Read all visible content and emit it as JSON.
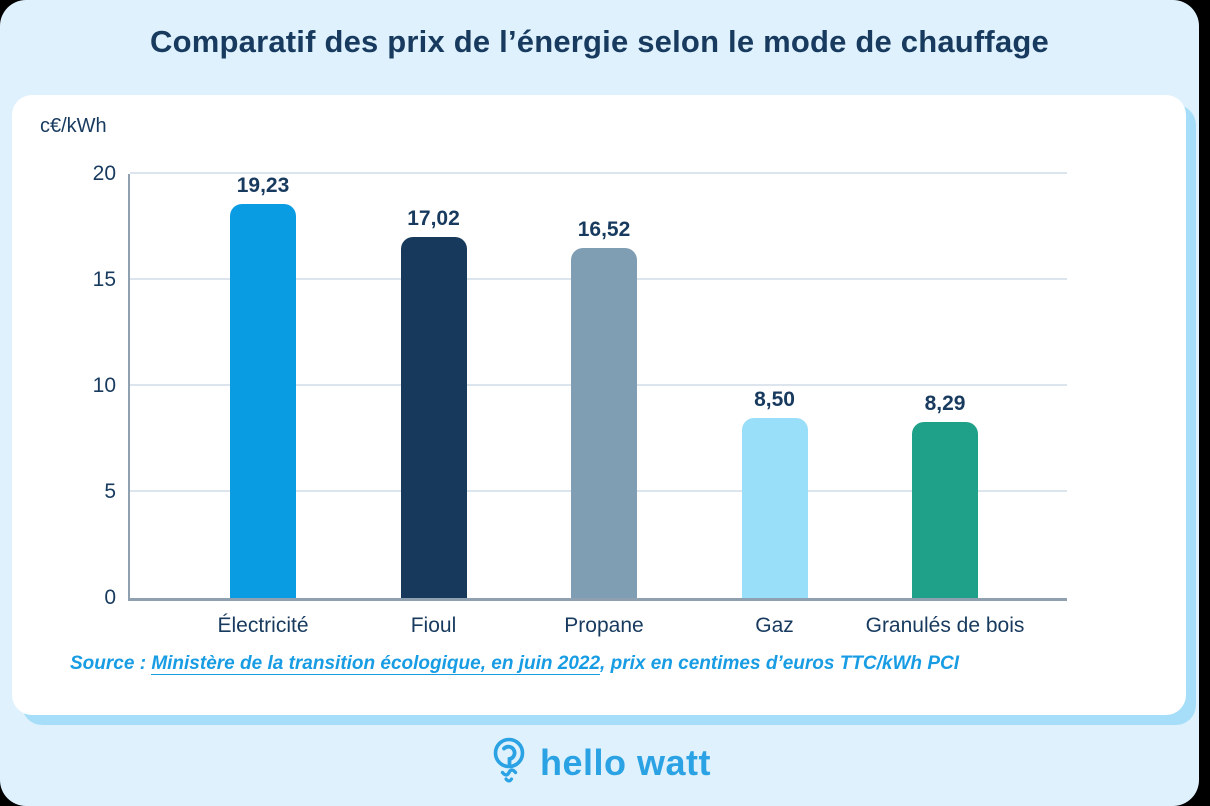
{
  "page": {
    "title": "Comparatif des prix de l’énergie selon le mode de chauffage",
    "background_color": "#def1fc",
    "card_color": "#ffffff",
    "card_shadow_color": "#a6def9",
    "title_color": "#173a5e"
  },
  "chart_data": {
    "type": "bar",
    "title": "Comparatif des prix de l’énergie selon le mode de chauffage",
    "unit_label": "c€/kWh",
    "categories": [
      "Électricité",
      "Fioul",
      "Propane",
      "Gaz",
      "Granulés de bois"
    ],
    "values": [
      19.23,
      17.02,
      16.52,
      8.5,
      8.29
    ],
    "value_labels": [
      "19,23",
      "17,02",
      "16,52",
      "8,50",
      "8,29"
    ],
    "bar_colors": [
      "#0a9ce2",
      "#17395c",
      "#7f9db3",
      "#99dffa",
      "#1fa189"
    ],
    "y_ticks": [
      0,
      5,
      10,
      15,
      20
    ],
    "ylim": [
      0,
      20
    ],
    "grid": true,
    "legend": "none",
    "label_color": "#173a5e",
    "grid_color": "#dce5ee",
    "axis_color": "#8fa0b0"
  },
  "source": {
    "prefix": "Source : ",
    "link_text": "Ministère de la transition écologique, en juin 2022",
    "suffix": ", prix en centimes d’euros TTC/kWh PCI",
    "color": "#189ce3"
  },
  "footer": {
    "logo_text": "hello watt",
    "logo_color": "#2aa2e4",
    "logo_icon": "lightbulb-icon"
  }
}
